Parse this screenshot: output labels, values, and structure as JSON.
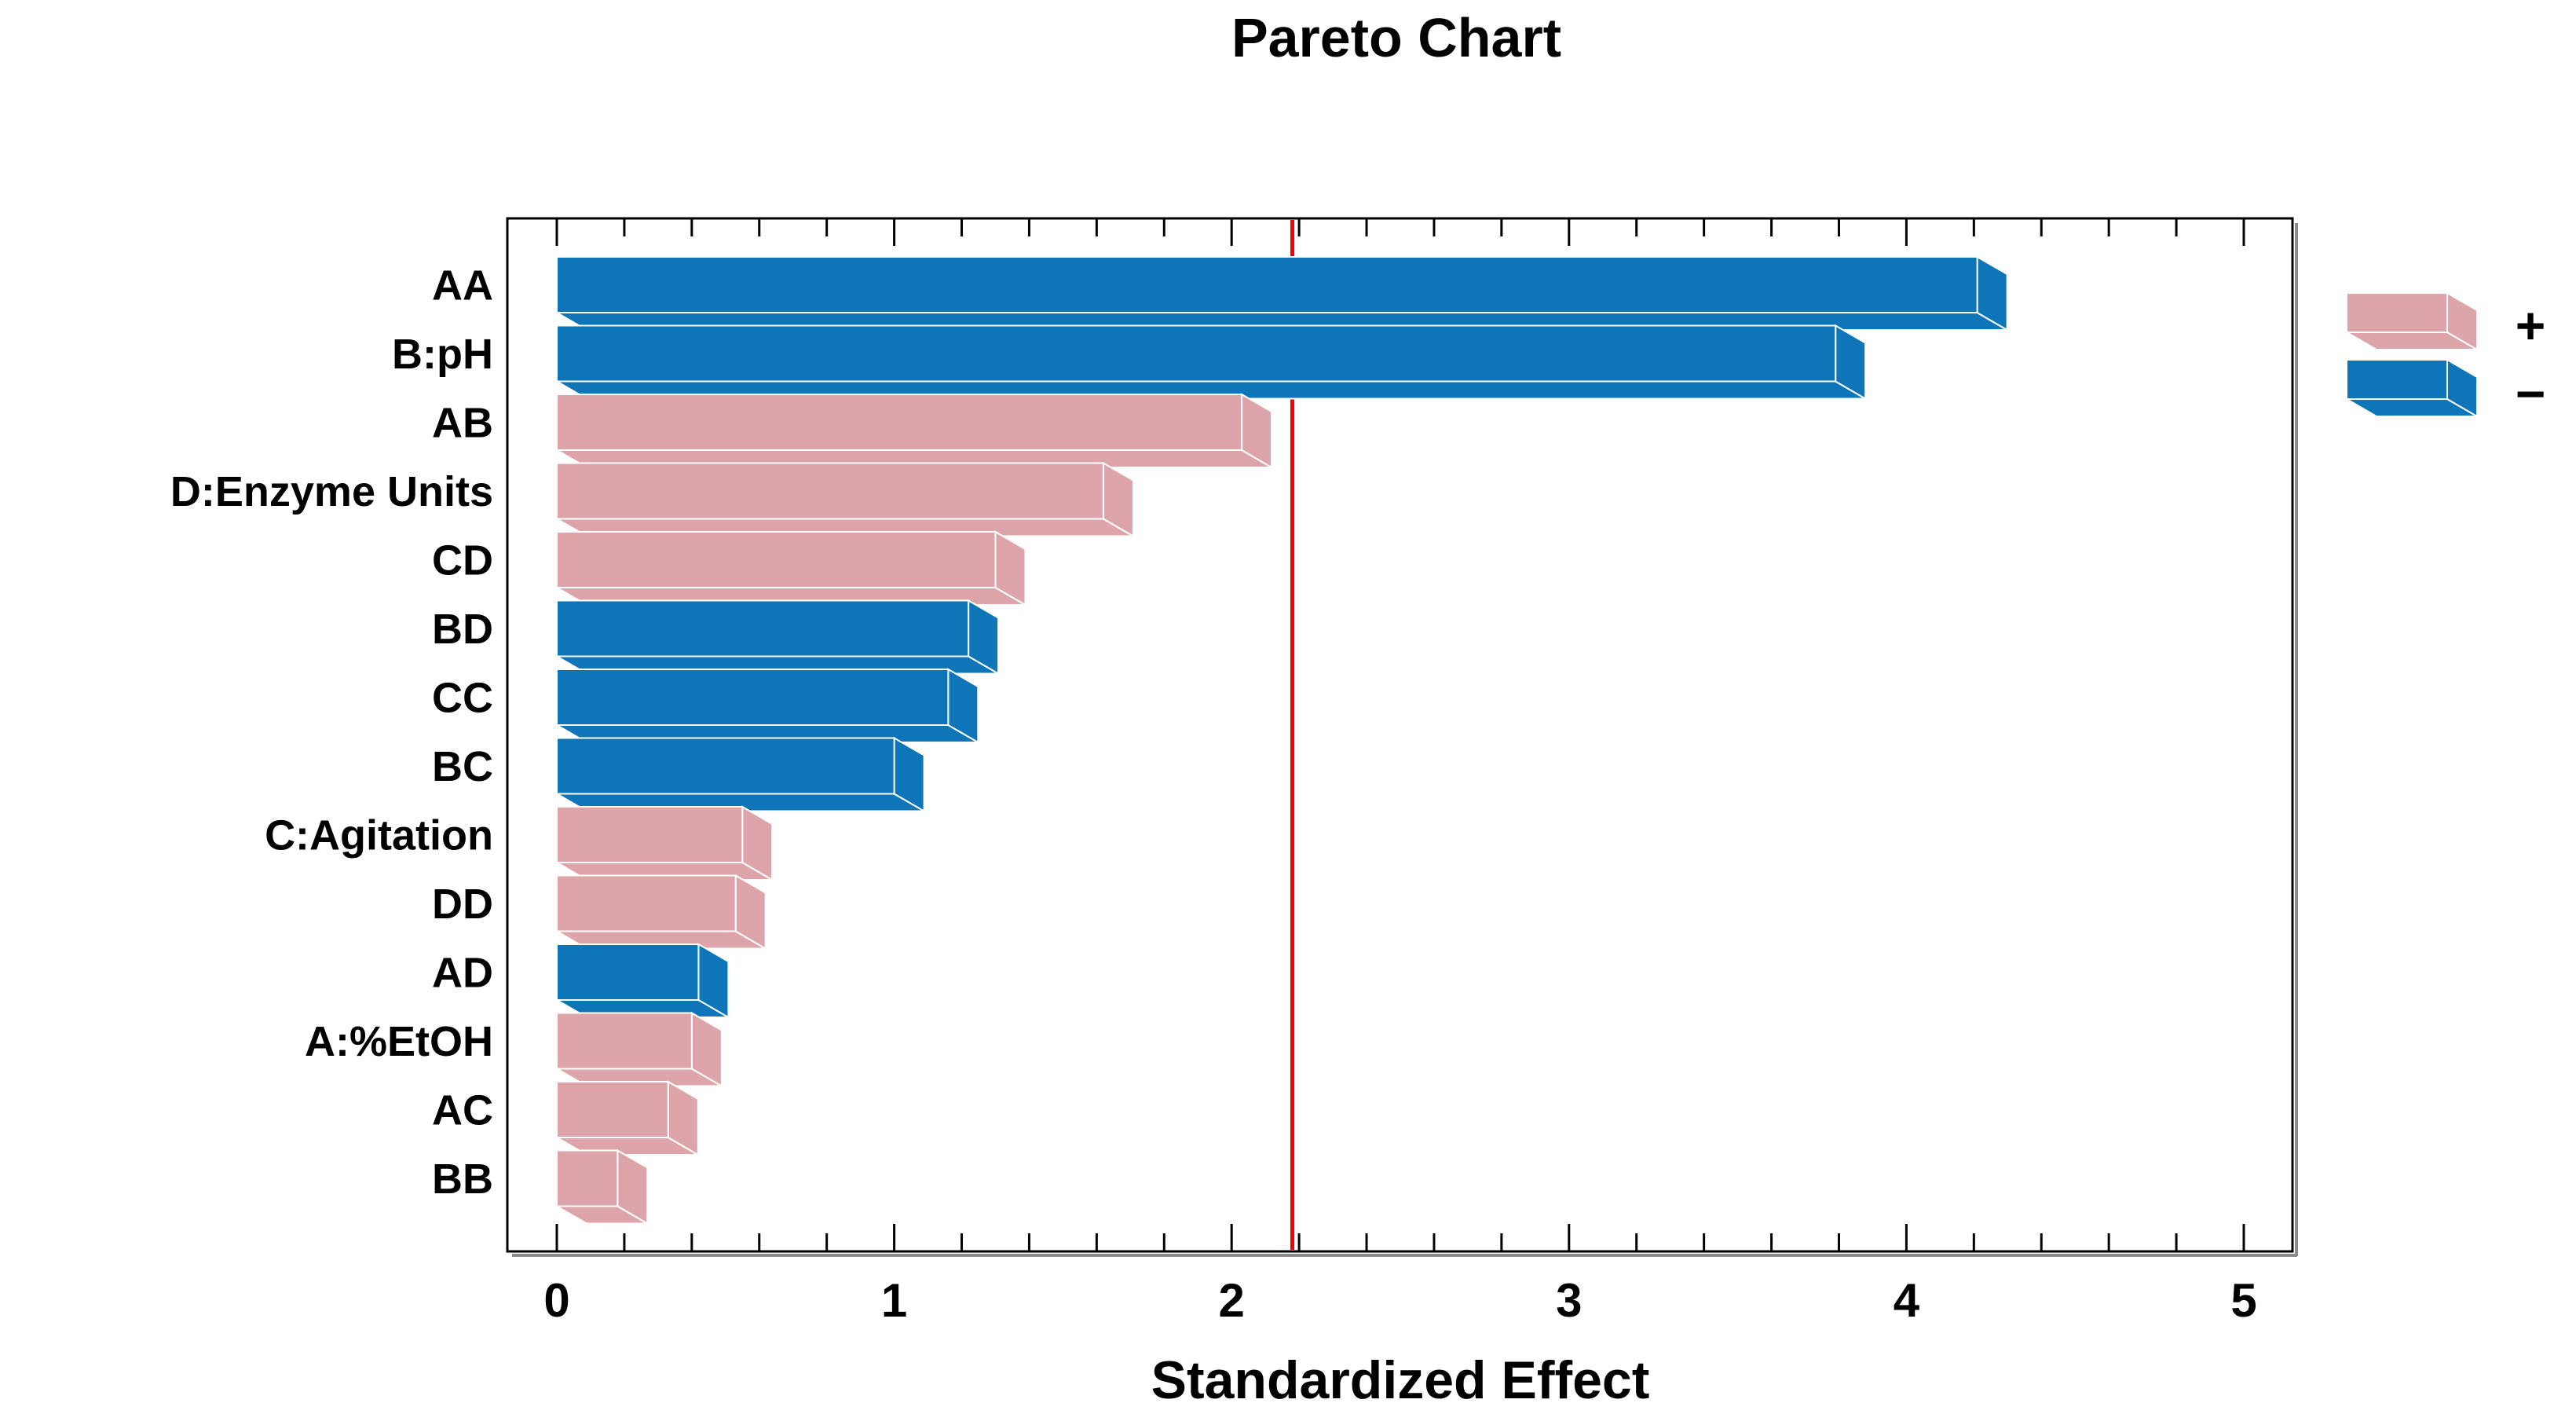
{
  "title": "Pareto Chart",
  "chart_data": {
    "type": "bar",
    "orientation": "horizontal",
    "title": "Pareto Chart",
    "xlabel": "Standardized Effect",
    "ylabel": "",
    "xlim": [
      0,
      5
    ],
    "x_major_ticks": [
      0,
      1,
      2,
      3,
      4,
      5
    ],
    "x_minor_step": 0.2,
    "grid": "off",
    "legend_position": "right",
    "threshold_line": {
      "value": 2.18,
      "color": "#f50000"
    },
    "categories": [
      "AA",
      "B:pH",
      "AB",
      "D:Enzyme Units",
      "CD",
      "BD",
      "CC",
      "BC",
      "C:Agitation",
      "DD",
      "AD",
      "A:%EtOH",
      "AC",
      "BB"
    ],
    "series": [
      {
        "name": "Standardized Effect",
        "values": [
          4.21,
          3.79,
          2.03,
          1.62,
          1.3,
          1.22,
          1.16,
          1.0,
          0.55,
          0.53,
          0.42,
          0.4,
          0.33,
          0.18
        ],
        "signs": [
          "-",
          "-",
          "+",
          "+",
          "+",
          "-",
          "-",
          "-",
          "+",
          "+",
          "-",
          "+",
          "+",
          "+"
        ]
      }
    ],
    "legend": [
      {
        "label": "+",
        "color_key": "plus"
      },
      {
        "label": "−",
        "color_key": "minus"
      }
    ]
  },
  "colors": {
    "plus": "#dda5aa",
    "minus": "#0d75b8",
    "threshold": "#f50000",
    "frame": "#000000",
    "frame_shadow": "#8c8c8c",
    "face_outline": "#ffffff",
    "text": "#000000",
    "background": "#ffffff"
  }
}
